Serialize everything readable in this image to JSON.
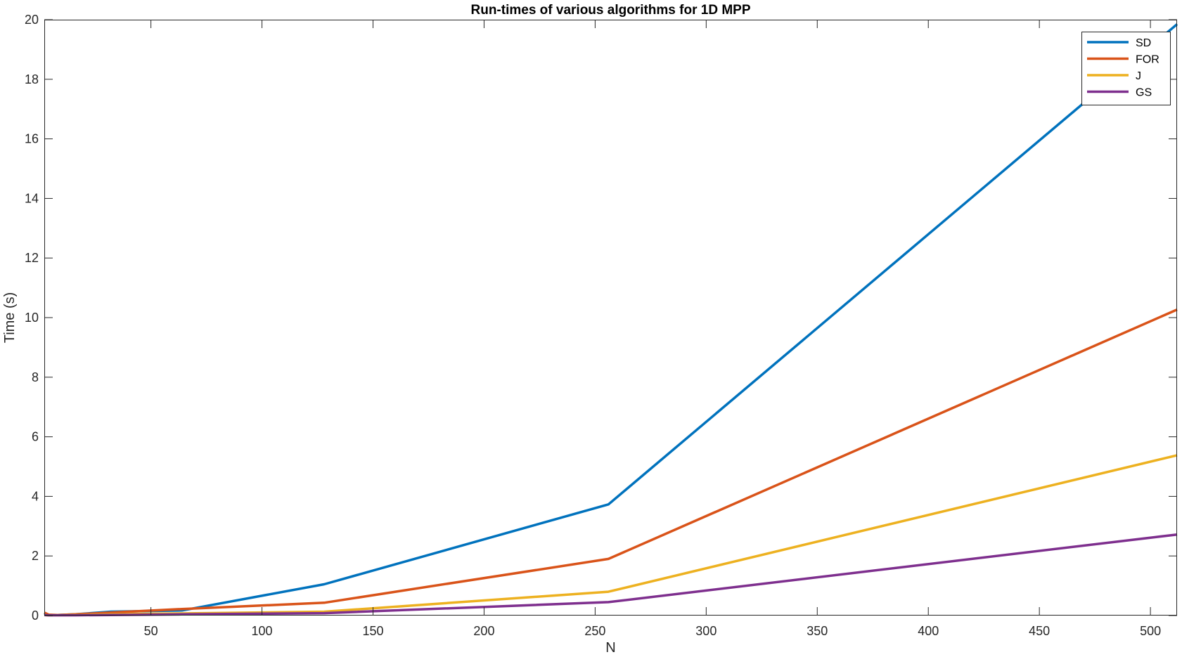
{
  "chart_data": {
    "type": "line",
    "title": "Run-times of various algorithms for 1D MPP",
    "xlabel": "N",
    "ylabel": "Time (s)",
    "xlim": [
      2,
      512
    ],
    "ylim": [
      0,
      20
    ],
    "xticks": [
      50,
      100,
      150,
      200,
      250,
      300,
      350,
      400,
      450,
      500
    ],
    "yticks": [
      0,
      2,
      4,
      6,
      8,
      10,
      12,
      14,
      16,
      18,
      20
    ],
    "grid": false,
    "legend_position": "top-right",
    "x": [
      2,
      4,
      8,
      16,
      32,
      64,
      128,
      256,
      512
    ],
    "series": [
      {
        "name": "SD",
        "color": "#0072BD",
        "values": [
          0.08,
          0.02,
          0.02,
          0.04,
          0.13,
          0.17,
          1.05,
          3.73,
          19.85
        ]
      },
      {
        "name": "FOR",
        "color": "#D95319",
        "values": [
          0.1,
          0.03,
          0.02,
          0.04,
          0.1,
          0.22,
          0.43,
          1.9,
          10.27
        ]
      },
      {
        "name": "J",
        "color": "#EDB120",
        "values": [
          0.02,
          0.01,
          0.01,
          0.02,
          0.04,
          0.07,
          0.13,
          0.8,
          5.38
        ]
      },
      {
        "name": "GS",
        "color": "#7E2F8E",
        "values": [
          0.02,
          0.01,
          0.01,
          0.01,
          0.02,
          0.04,
          0.08,
          0.45,
          2.72
        ]
      }
    ]
  }
}
